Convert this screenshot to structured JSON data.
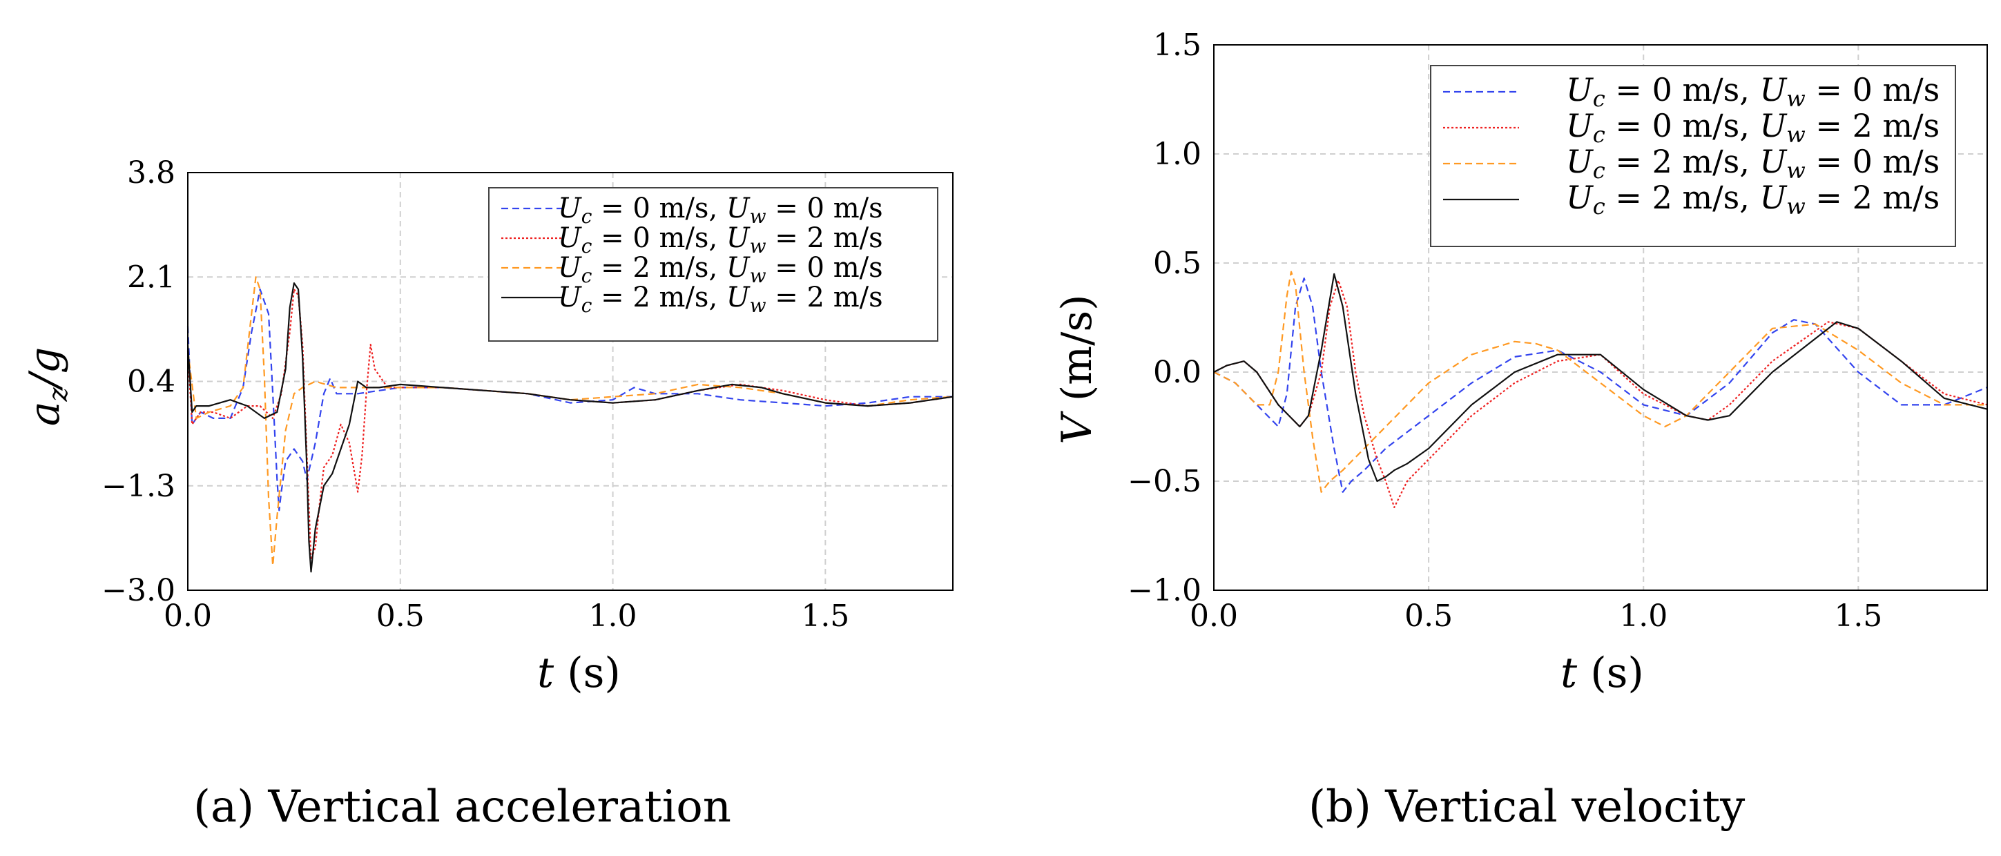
{
  "chart_data": [
    {
      "id": "a",
      "type": "line",
      "caption_label": "(a)",
      "caption_text": "Vertical acceleration",
      "xlabel_var": "t",
      "xlabel_unit": "(s)",
      "ylabel_var": "a",
      "ylabel_sub": "z",
      "ylabel_den": "/g",
      "xlim": [
        0,
        1.8
      ],
      "ylim": [
        -3.0,
        3.8
      ],
      "xticks": [
        0.0,
        0.5,
        1.0,
        1.5
      ],
      "xtick_labels": [
        "0.0",
        "0.5",
        "1.0",
        "1.5"
      ],
      "yticks": [
        -3.0,
        -1.3,
        0.4,
        2.1,
        3.8
      ],
      "ytick_labels": [
        "−3.0",
        "−1.3",
        "0.4",
        "2.1",
        "3.8"
      ],
      "grid": true,
      "legend_position": "top-right",
      "series": [
        {
          "name": "Uc = 0 m/s, Uw = 0 m/s",
          "legend_parts": [
            "U",
            "c",
            " = 0 m/s, ",
            "U",
            "w",
            " = 0 m/s"
          ],
          "color": "#3344ee",
          "dash": "dashed",
          "x": [
            0.0,
            0.01,
            0.03,
            0.06,
            0.1,
            0.13,
            0.15,
            0.17,
            0.19,
            0.2,
            0.21,
            0.215,
            0.22,
            0.23,
            0.25,
            0.27,
            0.28,
            0.3,
            0.32,
            0.335,
            0.35,
            0.4,
            0.45,
            0.5,
            0.6,
            0.7,
            0.8,
            0.9,
            1.0,
            1.05,
            1.1,
            1.2,
            1.3,
            1.4,
            1.5,
            1.6,
            1.7,
            1.8
          ],
          "y": [
            1.3,
            -0.3,
            -0.1,
            -0.2,
            -0.2,
            0.3,
            1.2,
            1.9,
            1.5,
            0.2,
            -1.2,
            -1.7,
            -1.4,
            -0.9,
            -0.7,
            -0.9,
            -1.2,
            -0.6,
            0.2,
            0.45,
            0.2,
            0.2,
            0.25,
            0.3,
            0.3,
            0.25,
            0.2,
            0.05,
            0.1,
            0.3,
            0.2,
            0.2,
            0.1,
            0.05,
            0.0,
            0.05,
            0.15,
            0.15
          ]
        },
        {
          "name": "Uc = 0 m/s, Uw = 2 m/s",
          "legend_parts": [
            "U",
            "c",
            " = 0 m/s, ",
            "U",
            "w",
            " = 2 m/s"
          ],
          "color": "#ee2222",
          "dash": "dotted",
          "x": [
            0.0,
            0.01,
            0.03,
            0.06,
            0.1,
            0.14,
            0.17,
            0.2,
            0.22,
            0.24,
            0.25,
            0.26,
            0.27,
            0.28,
            0.29,
            0.3,
            0.31,
            0.32,
            0.34,
            0.36,
            0.38,
            0.4,
            0.41,
            0.42,
            0.43,
            0.44,
            0.47,
            0.5,
            0.6,
            0.7,
            0.8,
            0.9,
            1.0,
            1.1,
            1.2,
            1.3,
            1.4,
            1.5,
            1.6,
            1.7,
            1.8
          ],
          "y": [
            0.9,
            -0.3,
            -0.1,
            -0.1,
            -0.2,
            0.0,
            0.0,
            -0.2,
            0.2,
            1.2,
            1.9,
            1.8,
            1.0,
            -0.8,
            -2.5,
            -2.3,
            -1.6,
            -1.0,
            -0.8,
            -0.3,
            -0.6,
            -1.4,
            -0.8,
            0.2,
            1.0,
            0.6,
            0.3,
            0.3,
            0.3,
            0.25,
            0.2,
            0.1,
            0.05,
            0.1,
            0.25,
            0.35,
            0.25,
            0.1,
            0.0,
            0.05,
            0.15
          ]
        },
        {
          "name": "Uc = 2 m/s, Uw = 0 m/s",
          "legend_parts": [
            "U",
            "c",
            " = 2 m/s, ",
            "U",
            "w",
            " = 0 m/s"
          ],
          "color": "#ff9922",
          "dash": "dashed",
          "x": [
            0.0,
            0.02,
            0.05,
            0.1,
            0.13,
            0.15,
            0.16,
            0.17,
            0.18,
            0.19,
            0.2,
            0.21,
            0.23,
            0.25,
            0.27,
            0.3,
            0.35,
            0.4,
            0.5,
            0.6,
            0.7,
            0.8,
            0.9,
            1.0,
            1.1,
            1.2,
            1.3,
            1.4,
            1.5,
            1.6,
            1.7,
            1.8
          ],
          "y": [
            0.9,
            -0.2,
            -0.1,
            0.0,
            0.3,
            1.5,
            2.1,
            1.9,
            0.5,
            -1.5,
            -2.6,
            -1.8,
            -0.4,
            0.2,
            0.3,
            0.4,
            0.3,
            0.3,
            0.3,
            0.3,
            0.25,
            0.2,
            0.1,
            0.15,
            0.2,
            0.35,
            0.3,
            0.2,
            0.05,
            0.0,
            0.1,
            0.15
          ]
        },
        {
          "name": "Uc = 2 m/s, Uw = 2 m/s",
          "legend_parts": [
            "U",
            "c",
            " = 2 m/s, ",
            "U",
            "w",
            " = 2 m/s"
          ],
          "color": "#111111",
          "dash": "solid",
          "x": [
            0.0,
            0.01,
            0.02,
            0.05,
            0.1,
            0.14,
            0.18,
            0.21,
            0.23,
            0.24,
            0.25,
            0.26,
            0.27,
            0.28,
            0.285,
            0.29,
            0.3,
            0.32,
            0.34,
            0.36,
            0.38,
            0.4,
            0.42,
            0.45,
            0.5,
            0.6,
            0.7,
            0.8,
            0.9,
            1.0,
            1.1,
            1.2,
            1.28,
            1.35,
            1.4,
            1.5,
            1.6,
            1.7,
            1.8
          ],
          "y": [
            1.0,
            -0.1,
            0.0,
            0.0,
            0.1,
            0.0,
            -0.2,
            -0.1,
            0.6,
            1.6,
            2.0,
            1.9,
            0.8,
            -1.0,
            -2.2,
            -2.7,
            -2.0,
            -1.3,
            -1.1,
            -0.7,
            -0.3,
            0.4,
            0.3,
            0.3,
            0.35,
            0.3,
            0.25,
            0.2,
            0.1,
            0.05,
            0.1,
            0.25,
            0.35,
            0.3,
            0.2,
            0.05,
            0.0,
            0.05,
            0.15
          ]
        }
      ]
    },
    {
      "id": "b",
      "type": "line",
      "caption_label": "(b)",
      "caption_text": "Vertical velocity",
      "xlabel_var": "t",
      "xlabel_unit": "(s)",
      "ylabel_var": "V",
      "ylabel_unit": "(m/s)",
      "xlim": [
        0,
        1.8
      ],
      "ylim": [
        -1.0,
        1.5
      ],
      "xticks": [
        0.0,
        0.5,
        1.0,
        1.5
      ],
      "xtick_labels": [
        "0.0",
        "0.5",
        "1.0",
        "1.5"
      ],
      "yticks": [
        -1.0,
        -0.5,
        0.0,
        0.5,
        1.0,
        1.5
      ],
      "ytick_labels": [
        "−1.0",
        "−0.5",
        "0.0",
        "0.5",
        "1.0",
        "1.5"
      ],
      "grid": true,
      "legend_position": "top-right",
      "series": [
        {
          "name": "Uc = 0 m/s, Uw = 0 m/s",
          "legend_parts": [
            "U",
            "c",
            " = 0 m/s, ",
            "U",
            "w",
            " = 0 m/s"
          ],
          "color": "#3344ee",
          "dash": "dashed",
          "x": [
            0.0,
            0.05,
            0.1,
            0.15,
            0.17,
            0.19,
            0.21,
            0.23,
            0.25,
            0.28,
            0.3,
            0.32,
            0.35,
            0.4,
            0.5,
            0.6,
            0.7,
            0.8,
            0.9,
            1.0,
            1.1,
            1.2,
            1.3,
            1.35,
            1.4,
            1.5,
            1.6,
            1.7,
            1.8
          ],
          "y": [
            0.0,
            -0.05,
            -0.15,
            -0.25,
            -0.1,
            0.3,
            0.43,
            0.3,
            0.0,
            -0.35,
            -0.55,
            -0.5,
            -0.45,
            -0.35,
            -0.2,
            -0.05,
            0.07,
            0.1,
            0.0,
            -0.15,
            -0.2,
            -0.05,
            0.18,
            0.24,
            0.22,
            0.0,
            -0.15,
            -0.15,
            -0.07
          ]
        },
        {
          "name": "Uc = 0 m/s, Uw = 2 m/s",
          "legend_parts": [
            "U",
            "c",
            " = 0 m/s, ",
            "U",
            "w",
            " = 2 m/s"
          ],
          "color": "#ee2222",
          "dash": "dotted",
          "x": [
            0.0,
            0.03,
            0.07,
            0.1,
            0.15,
            0.2,
            0.22,
            0.25,
            0.27,
            0.29,
            0.31,
            0.33,
            0.35,
            0.38,
            0.4,
            0.42,
            0.45,
            0.5,
            0.6,
            0.7,
            0.8,
            0.9,
            1.0,
            1.1,
            1.15,
            1.2,
            1.3,
            1.43,
            1.5,
            1.6,
            1.7,
            1.8
          ],
          "y": [
            0.0,
            0.03,
            0.05,
            0.0,
            -0.15,
            -0.25,
            -0.2,
            0.0,
            0.3,
            0.42,
            0.3,
            0.0,
            -0.2,
            -0.4,
            -0.5,
            -0.62,
            -0.5,
            -0.4,
            -0.2,
            -0.05,
            0.05,
            0.08,
            -0.1,
            -0.2,
            -0.22,
            -0.15,
            0.05,
            0.23,
            0.2,
            0.05,
            -0.1,
            -0.15
          ]
        },
        {
          "name": "Uc = 2 m/s, Uw = 0 m/s",
          "legend_parts": [
            "U",
            "c",
            " = 2 m/s, ",
            "U",
            "w",
            " = 0 m/s"
          ],
          "color": "#ff9922",
          "dash": "dashed",
          "x": [
            0.0,
            0.05,
            0.1,
            0.13,
            0.15,
            0.17,
            0.18,
            0.19,
            0.21,
            0.23,
            0.25,
            0.27,
            0.3,
            0.35,
            0.4,
            0.5,
            0.6,
            0.7,
            0.75,
            0.8,
            0.9,
            1.0,
            1.05,
            1.1,
            1.2,
            1.3,
            1.4,
            1.5,
            1.6,
            1.7,
            1.8
          ],
          "y": [
            0.0,
            -0.05,
            -0.15,
            -0.15,
            0.0,
            0.35,
            0.46,
            0.4,
            0.0,
            -0.3,
            -0.55,
            -0.5,
            -0.45,
            -0.35,
            -0.25,
            -0.05,
            0.08,
            0.14,
            0.13,
            0.1,
            -0.05,
            -0.2,
            -0.25,
            -0.2,
            0.0,
            0.2,
            0.22,
            0.1,
            -0.05,
            -0.15,
            -0.15
          ]
        },
        {
          "name": "Uc = 2 m/s, Uw = 2 m/s",
          "legend_parts": [
            "U",
            "c",
            " = 2 m/s, ",
            "U",
            "w",
            " = 2 m/s"
          ],
          "color": "#111111",
          "dash": "solid",
          "x": [
            0.0,
            0.03,
            0.07,
            0.1,
            0.15,
            0.2,
            0.22,
            0.25,
            0.28,
            0.3,
            0.33,
            0.36,
            0.38,
            0.4,
            0.42,
            0.45,
            0.5,
            0.6,
            0.7,
            0.8,
            0.9,
            1.0,
            1.1,
            1.15,
            1.2,
            1.3,
            1.45,
            1.5,
            1.6,
            1.7,
            1.8
          ],
          "y": [
            0.0,
            0.03,
            0.05,
            0.0,
            -0.15,
            -0.25,
            -0.2,
            0.1,
            0.45,
            0.3,
            -0.1,
            -0.4,
            -0.5,
            -0.48,
            -0.45,
            -0.42,
            -0.35,
            -0.15,
            0.0,
            0.08,
            0.08,
            -0.08,
            -0.2,
            -0.22,
            -0.2,
            0.0,
            0.23,
            0.2,
            0.05,
            -0.12,
            -0.17
          ]
        }
      ]
    }
  ]
}
